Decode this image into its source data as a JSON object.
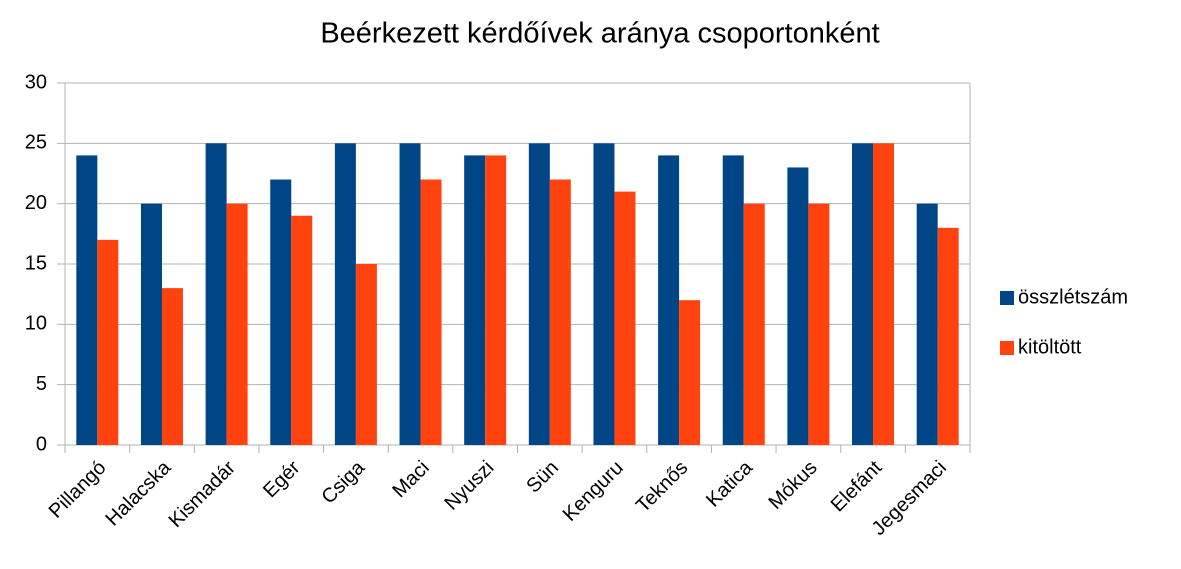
{
  "chart_data": {
    "type": "bar",
    "title": "Beérkezett kérdőívek aránya csoportonként",
    "categories": [
      "Pillangó",
      "Halacska",
      "Kismadár",
      "Egér",
      "Csiga",
      "Maci",
      "Nyuszi",
      "Sün",
      "Kenguru",
      "Teknős",
      "Katica",
      "Mókus",
      "Elefánt",
      "Jegesmaci"
    ],
    "series": [
      {
        "name": "összlétszám",
        "color": "#004586",
        "values": [
          24,
          20,
          25,
          22,
          25,
          25,
          24,
          25,
          25,
          24,
          24,
          23,
          25,
          20
        ]
      },
      {
        "name": "kitöltött",
        "color": "#ff420e",
        "values": [
          17,
          13,
          20,
          19,
          15,
          22,
          24,
          22,
          21,
          12,
          20,
          20,
          25,
          18
        ]
      }
    ],
    "ylim": [
      0,
      30
    ],
    "yticks": [
      0,
      5,
      10,
      15,
      20,
      25,
      30
    ],
    "grid": true,
    "legend": "right"
  }
}
